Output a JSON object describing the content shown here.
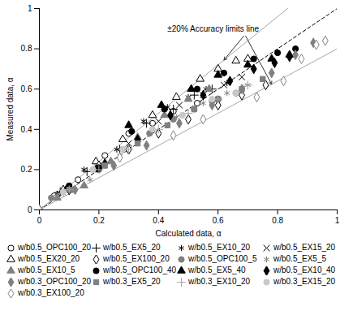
{
  "chart_data": {
    "type": "scatter",
    "x_label": "Calculated data, α",
    "y_label": "Measured data, α",
    "xlim": [
      0,
      1
    ],
    "ylim": [
      0,
      1
    ],
    "xticks": [
      0,
      0.2,
      0.4,
      0.6,
      0.8,
      1
    ],
    "yticks": [
      0,
      0.2,
      0.4,
      0.6,
      0.8,
      1
    ],
    "grid": false,
    "legend": "bottom",
    "reference_lines": [
      {
        "slope": 1,
        "color": "#000000",
        "line_style": "dashed"
      },
      {
        "slope": 1.2,
        "color": "#a6a6a6",
        "line_style": "solid"
      },
      {
        "slope": 0.8,
        "color": "#a6a6a6",
        "line_style": "solid"
      }
    ],
    "annotations": [
      {
        "text": "±20% Accuracy limits line",
        "x": 0.43,
        "y": 0.9
      }
    ],
    "series": [
      {
        "name": "w/b0.5_OPC100_20",
        "marker": "open_circle",
        "color": "#000000",
        "x": [
          0,
          0.05,
          0.13,
          0.22,
          0.3,
          0.38,
          0.45,
          0.53,
          0.6,
          0.66
        ],
        "y": [
          0,
          0.07,
          0.15,
          0.27,
          0.38,
          0.43,
          0.49,
          0.53,
          0.55,
          0.58
        ]
      },
      {
        "name": "w/b0.5_EX5_20",
        "marker": "plus",
        "color": "#000000",
        "x": [
          0,
          0.07,
          0.16,
          0.27,
          0.36,
          0.45,
          0.52,
          0.58
        ],
        "y": [
          0,
          0.09,
          0.19,
          0.3,
          0.43,
          0.5,
          0.57,
          0.6
        ]
      },
      {
        "name": "w/b0.5_EX10_20",
        "marker": "asterisk",
        "color": "#000000",
        "x": [
          0,
          0.06,
          0.15,
          0.26,
          0.35,
          0.43,
          0.5,
          0.56,
          0.63
        ],
        "y": [
          0,
          0.08,
          0.2,
          0.3,
          0.44,
          0.51,
          0.56,
          0.6,
          0.63
        ]
      },
      {
        "name": "w/b0.5_EX15_20",
        "marker": "times",
        "color": "#000000",
        "x": [
          0,
          0.09,
          0.2,
          0.3,
          0.4,
          0.47,
          0.55,
          0.62,
          0.68
        ],
        "y": [
          0,
          0.1,
          0.22,
          0.33,
          0.44,
          0.52,
          0.57,
          0.62,
          0.66
        ]
      },
      {
        "name": "w/b0.5_EX20_20",
        "marker": "open_triangle",
        "color": "#000000",
        "x": [
          0,
          0.08,
          0.19,
          0.28,
          0.38,
          0.46,
          0.54,
          0.6,
          0.66,
          0.7
        ],
        "y": [
          0,
          0.1,
          0.24,
          0.35,
          0.47,
          0.56,
          0.65,
          0.7,
          0.74,
          0.75
        ]
      },
      {
        "name": "w/b0.5_EX100_20",
        "marker": "open_diamond",
        "color": "#000000",
        "x": [
          0,
          0.1,
          0.2,
          0.3,
          0.4,
          0.5,
          0.6,
          0.68,
          0.76
        ],
        "y": [
          0,
          0.1,
          0.22,
          0.3,
          0.38,
          0.45,
          0.52,
          0.57,
          0.62
        ]
      },
      {
        "name": "w/b0.5_OPC100_5",
        "marker": "circle",
        "color": "#808080",
        "x": [
          0,
          0.04,
          0.11,
          0.2,
          0.28,
          0.37,
          0.45,
          0.52,
          0.58
        ],
        "y": [
          0,
          0.06,
          0.1,
          0.2,
          0.3,
          0.38,
          0.45,
          0.5,
          0.54
        ]
      },
      {
        "name": "w/b0.5_EX5_5",
        "marker": "asterisk",
        "color": "#808080",
        "x": [
          0,
          0.08,
          0.17,
          0.27,
          0.37,
          0.46,
          0.55,
          0.63,
          0.7
        ],
        "y": [
          0,
          0.08,
          0.15,
          0.27,
          0.38,
          0.46,
          0.53,
          0.58,
          0.62
        ]
      },
      {
        "name": "w/b0.5_EX10_5",
        "marker": "triangle",
        "color": "#808080",
        "x": [
          0,
          0.06,
          0.15,
          0.24,
          0.33,
          0.42,
          0.5,
          0.57
        ],
        "y": [
          0,
          0.06,
          0.12,
          0.24,
          0.36,
          0.47,
          0.55,
          0.6
        ]
      },
      {
        "name": "w/b0.5_OPC100_40",
        "marker": "circle",
        "color": "#000000",
        "x": [
          0,
          0.1,
          0.2,
          0.31,
          0.42,
          0.53,
          0.62,
          0.72,
          0.8,
          0.86
        ],
        "y": [
          0,
          0.12,
          0.21,
          0.39,
          0.5,
          0.6,
          0.68,
          0.75,
          0.78,
          0.8
        ]
      },
      {
        "name": "w/b0.5_EX5_40",
        "marker": "triangle",
        "color": "#000000",
        "x": [
          0,
          0.09,
          0.19,
          0.3,
          0.41,
          0.51,
          0.6,
          0.7,
          0.78,
          0.84
        ],
        "y": [
          0,
          0.1,
          0.2,
          0.42,
          0.52,
          0.6,
          0.67,
          0.72,
          0.75,
          0.77
        ]
      },
      {
        "name": "w/b0.5_EX10_40",
        "marker": "diamond",
        "color": "#000000",
        "x": [
          0,
          0.1,
          0.22,
          0.33,
          0.44,
          0.55,
          0.64,
          0.72,
          0.79,
          0.84
        ],
        "y": [
          0,
          0.1,
          0.23,
          0.35,
          0.47,
          0.57,
          0.64,
          0.7,
          0.73,
          0.76
        ]
      },
      {
        "name": "w/b0.3_OPC100_20",
        "marker": "diamond",
        "color": "#808080",
        "x": [
          0,
          0.12,
          0.25,
          0.36,
          0.47,
          0.58,
          0.68,
          0.78,
          0.86,
          0.92
        ],
        "y": [
          0,
          0.1,
          0.22,
          0.32,
          0.43,
          0.52,
          0.6,
          0.68,
          0.77,
          0.83
        ]
      },
      {
        "name": "w/b0.3_EX5_20",
        "marker": "square",
        "color": "#808080",
        "x": [
          0,
          0.1,
          0.22,
          0.33,
          0.43,
          0.52,
          0.6,
          0.68,
          0.75
        ],
        "y": [
          0,
          0.1,
          0.22,
          0.33,
          0.42,
          0.5,
          0.55,
          0.6,
          0.65
        ]
      },
      {
        "name": "w/b0.3_EX10_20",
        "marker": "plus",
        "color": "#a6a6a6",
        "x": [
          0,
          0.1,
          0.2,
          0.3,
          0.4,
          0.5,
          0.6,
          0.7
        ],
        "y": [
          0,
          0.1,
          0.2,
          0.3,
          0.4,
          0.48,
          0.55,
          0.62
        ]
      },
      {
        "name": "w/b0.3_EX15_20",
        "marker": "circle",
        "color": "#c8c8c8",
        "x": [
          0,
          0.08,
          0.18,
          0.28,
          0.38,
          0.48,
          0.58,
          0.66
        ],
        "y": [
          0,
          0.09,
          0.2,
          0.3,
          0.4,
          0.47,
          0.55,
          0.58
        ]
      },
      {
        "name": "w/b0.3_EX100_20",
        "marker": "open_diamond",
        "color": "#808080",
        "x": [
          0,
          0.27,
          0.45,
          0.55,
          0.73,
          0.82,
          0.88,
          0.93,
          0.96
        ],
        "y": [
          0,
          0.26,
          0.37,
          0.45,
          0.56,
          0.64,
          0.75,
          0.82,
          0.84
        ]
      }
    ]
  }
}
